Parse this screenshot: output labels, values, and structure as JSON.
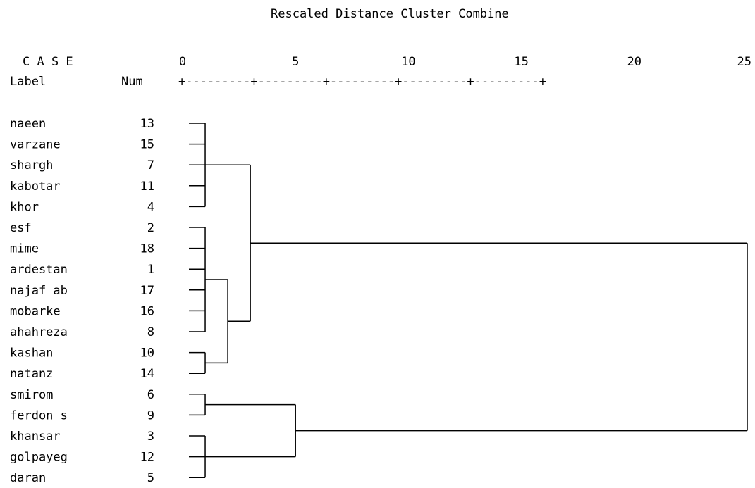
{
  "title": "Rescaled Distance Cluster Combine",
  "header": {
    "case_label": "C A S E",
    "label_col": "Label",
    "num_col": "Num"
  },
  "scale": {
    "ticks": [
      "0",
      "5",
      "10",
      "15",
      "20",
      "25"
    ],
    "ruler": "+---------+---------+---------+---------+---------+"
  },
  "cases": [
    {
      "label": "naeen",
      "num": "13"
    },
    {
      "label": "varzane",
      "num": "15"
    },
    {
      "label": "shargh",
      "num": "7"
    },
    {
      "label": "kabotar",
      "num": "11"
    },
    {
      "label": "khor",
      "num": "4"
    },
    {
      "label": "esf",
      "num": "2"
    },
    {
      "label": "mime",
      "num": "18"
    },
    {
      "label": "ardestan",
      "num": "1"
    },
    {
      "label": "najaf ab",
      "num": "17"
    },
    {
      "label": "mobarke",
      "num": "16"
    },
    {
      "label": "ahahreza",
      "num": "8"
    },
    {
      "label": "kashan",
      "num": "10"
    },
    {
      "label": "natanz",
      "num": "14"
    },
    {
      "label": "smirom",
      "num": "6"
    },
    {
      "label": "ferdon s",
      "num": "9"
    },
    {
      "label": "khansar",
      "num": "3"
    },
    {
      "label": "golpayeg",
      "num": "12"
    },
    {
      "label": "daran",
      "num": "5"
    }
  ],
  "merges": [
    {
      "members": [
        0,
        1,
        2,
        3,
        4
      ],
      "distance": 1.0
    },
    {
      "members": [
        5,
        6,
        7,
        8,
        9,
        10
      ],
      "distance": 1.0
    },
    {
      "members": [
        11,
        12
      ],
      "distance": 1.0
    },
    {
      "members": [
        13,
        14
      ],
      "distance": 1.0
    },
    {
      "members": [
        15,
        16,
        17
      ],
      "distance": 1.0
    },
    {
      "members": [
        "c1",
        "c2"
      ],
      "distance": 2.0
    },
    {
      "members": [
        "c0",
        "c5"
      ],
      "distance": 3.0
    },
    {
      "members": [
        "c3",
        "c4"
      ],
      "distance": 5.0
    },
    {
      "members": [
        "c6",
        "c7"
      ],
      "distance": 25.0
    }
  ]
}
